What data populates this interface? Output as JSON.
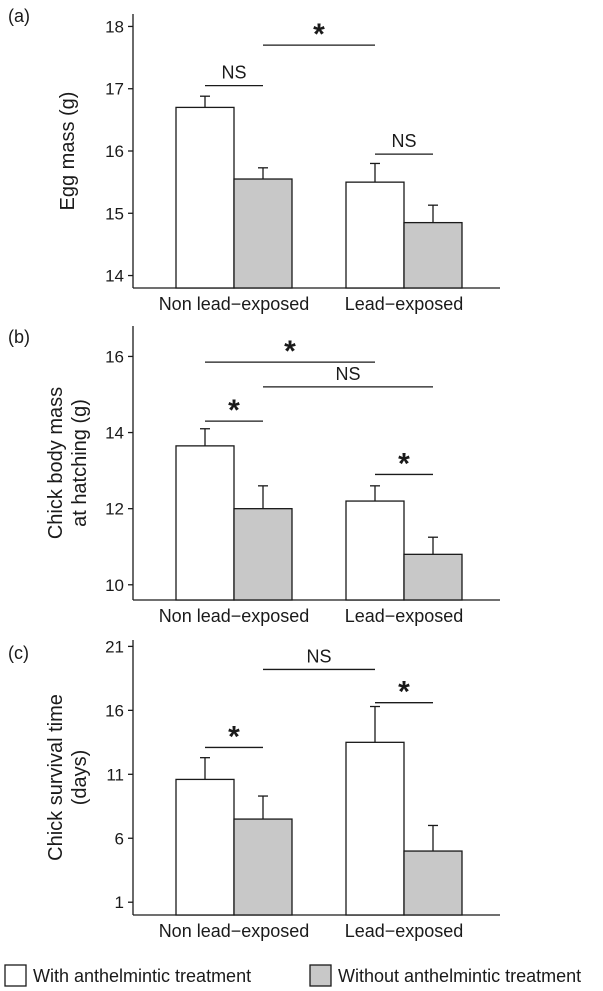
{
  "chart_data": [
    {
      "type": "bar",
      "panel_label": "(a)",
      "ylabel": "Egg mass (g)",
      "ylim": [
        13.8,
        18.2
      ],
      "yticks": [
        14,
        15,
        16,
        17,
        18
      ],
      "categories": [
        "Non lead−exposed",
        "Lead−exposed"
      ],
      "series": [
        {
          "values": [
            16.7,
            15.5
          ],
          "errors": [
            0.18,
            0.3
          ]
        },
        {
          "values": [
            15.55,
            14.85
          ],
          "errors": [
            0.18,
            0.28
          ]
        }
      ],
      "annotations": [
        {
          "label": "NS",
          "from": [
            0,
            0
          ],
          "to": [
            0,
            1
          ],
          "level": 17.05
        },
        {
          "label": "NS",
          "from": [
            1,
            0
          ],
          "to": [
            1,
            1
          ],
          "level": 15.95
        },
        {
          "label": "*",
          "from": [
            0,
            1
          ],
          "to": [
            1,
            0
          ],
          "level": 17.7
        }
      ]
    },
    {
      "type": "bar",
      "panel_label": "(b)",
      "ylabel_lines": [
        "Chick body mass",
        "at hatching (g)"
      ],
      "ylim": [
        9.6,
        16.8
      ],
      "yticks": [
        10,
        12,
        14,
        16
      ],
      "categories": [
        "Non lead−exposed",
        "Lead−exposed"
      ],
      "series": [
        {
          "values": [
            13.65,
            12.2
          ],
          "errors": [
            0.45,
            0.4
          ]
        },
        {
          "values": [
            12.0,
            10.8
          ],
          "errors": [
            0.6,
            0.45
          ]
        }
      ],
      "annotations": [
        {
          "label": "*",
          "from": [
            0,
            0
          ],
          "to": [
            1,
            0
          ],
          "level": 15.85
        },
        {
          "label": "NS",
          "from": [
            0,
            1
          ],
          "to": [
            1,
            1
          ],
          "level": 15.2
        },
        {
          "label": "*",
          "from": [
            0,
            0
          ],
          "to": [
            0,
            1
          ],
          "level": 14.3
        },
        {
          "label": "*",
          "from": [
            1,
            0
          ],
          "to": [
            1,
            1
          ],
          "level": 12.9
        }
      ]
    },
    {
      "type": "bar",
      "panel_label": "(c)",
      "ylabel_lines": [
        "Chick survival time",
        "(days)"
      ],
      "ylim": [
        0,
        21.5
      ],
      "yticks": [
        1,
        6,
        11,
        16,
        21
      ],
      "categories": [
        "Non lead−exposed",
        "Lead−exposed"
      ],
      "series": [
        {
          "values": [
            10.6,
            13.5
          ],
          "errors": [
            1.7,
            2.8
          ]
        },
        {
          "values": [
            7.5,
            5.0
          ],
          "errors": [
            1.8,
            2.0
          ]
        }
      ],
      "annotations": [
        {
          "label": "NS",
          "from": [
            0,
            1
          ],
          "to": [
            1,
            0
          ],
          "level": 19.2
        },
        {
          "label": "*",
          "from": [
            0,
            0
          ],
          "to": [
            0,
            1
          ],
          "level": 13.1
        },
        {
          "label": "*",
          "from": [
            1,
            0
          ],
          "to": [
            1,
            1
          ],
          "level": 16.6
        }
      ]
    }
  ],
  "legend": {
    "placement": "bottom",
    "items": [
      {
        "label": "With anthelmintic treatment",
        "color": "#ffffff"
      },
      {
        "label": "Without anthelmintic treatment",
        "color": "#c8c8c8"
      }
    ]
  },
  "colors": {
    "with_treatment": "#ffffff",
    "without_treatment": "#c8c8c8",
    "stroke": "#1a1a1a"
  }
}
